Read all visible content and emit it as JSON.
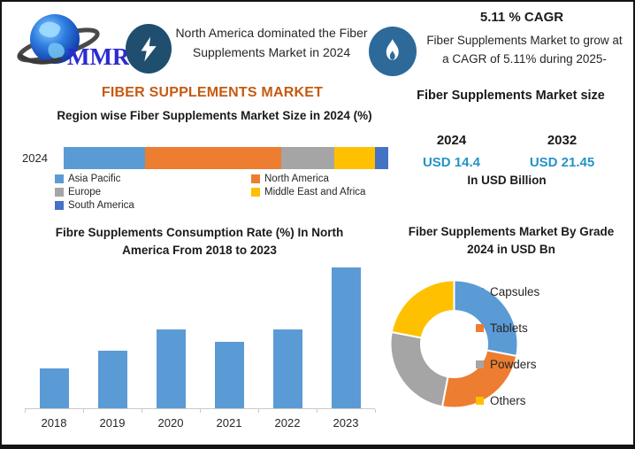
{
  "header": {
    "logo_text": "MMR",
    "banner_left": "North America dominated the Fiber Supplements Market in 2024",
    "cagr_title": "5.11 % CAGR",
    "banner_right": "Fiber Supplements Market to grow at a CAGR of 5.11% during 2025-"
  },
  "left": {
    "main_title": "FIBER SUPPLEMENTS MARKET"
  },
  "right": {
    "market_size": {
      "title": "Fiber Supplements Market size",
      "year_1": "2024",
      "year_2": "2032",
      "value_1": "USD 14.4",
      "value_2": "USD 21.45",
      "unit": "In USD Billion",
      "value_color": "#2592C8"
    }
  },
  "chart_data": [
    {
      "type": "bar",
      "subtype": "stacked-horizontal",
      "title": "Region wise Fiber Supplements Market Size in 2024 (%)",
      "categories": [
        "2024"
      ],
      "series": [
        {
          "name": "Asia Pacific",
          "color": "#5B9BD5",
          "values": [
            25
          ]
        },
        {
          "name": "North America",
          "color": "#ED7D31",
          "values": [
            42
          ]
        },
        {
          "name": "Europe",
          "color": "#A5A5A5",
          "values": [
            16.5
          ]
        },
        {
          "name": "Middle East and Africa",
          "color": "#FFC000",
          "values": [
            12.5
          ]
        },
        {
          "name": "South America",
          "color": "#4472C4",
          "values": [
            4
          ]
        }
      ],
      "xlim": [
        0,
        100
      ],
      "note": "segment shares estimated from bar widths; no data labels shown",
      "legend_position": "bottom"
    },
    {
      "type": "bar",
      "title": "Fibre Supplements Consumption Rate (%) In North America From 2018 to 2023",
      "categories": [
        "2018",
        "2019",
        "2020",
        "2021",
        "2022",
        "2023"
      ],
      "values": [
        28,
        41,
        56,
        47,
        56,
        100
      ],
      "ylabel": "",
      "ylim": [
        0,
        100
      ],
      "note": "y-axis unlabeled; values are relative heights with 2023 = 100",
      "bar_color": "#5B9BD5",
      "grid": false
    },
    {
      "type": "pie",
      "subtype": "donut",
      "title": "Fiber Supplements Market By Grade 2024 in USD Bn",
      "categories": [
        "Capsules",
        "Tablets",
        "Powders",
        "Others"
      ],
      "values": [
        28,
        25,
        25,
        22
      ],
      "colors": [
        "#5B9BD5",
        "#ED7D31",
        "#A5A5A5",
        "#FFC000"
      ],
      "note": "slice shares estimated from arc angles; no data labels shown",
      "legend_position": "right"
    }
  ]
}
